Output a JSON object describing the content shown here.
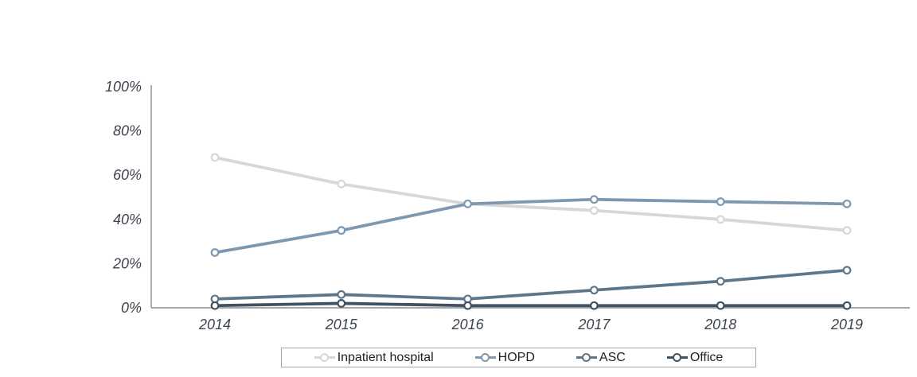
{
  "chart_data": {
    "type": "line",
    "title": "",
    "xlabel": "",
    "ylabel": "",
    "categories": [
      "2014",
      "2015",
      "2016",
      "2017",
      "2018",
      "2019"
    ],
    "yticks": [
      "0%",
      "20%",
      "40%",
      "60%",
      "80%",
      "100%"
    ],
    "ylim": [
      0,
      100
    ],
    "grid": false,
    "legend_position": "bottom",
    "axis_color": "#8c8c8c",
    "tick_label_color": "#3d434c",
    "series": [
      {
        "name": "Inpatient hospital",
        "color": "#d7d7d7",
        "values": [
          68,
          56,
          47,
          44,
          40,
          35
        ]
      },
      {
        "name": "HOPD",
        "color": "#7e98af",
        "values": [
          25,
          35,
          47,
          49,
          48,
          47
        ]
      },
      {
        "name": "ASC",
        "color": "#5e7689",
        "values": [
          4,
          6,
          4,
          8,
          12,
          17
        ]
      },
      {
        "name": "Office",
        "color": "#405261",
        "values": [
          1,
          2,
          1,
          1,
          1,
          1
        ]
      }
    ]
  }
}
